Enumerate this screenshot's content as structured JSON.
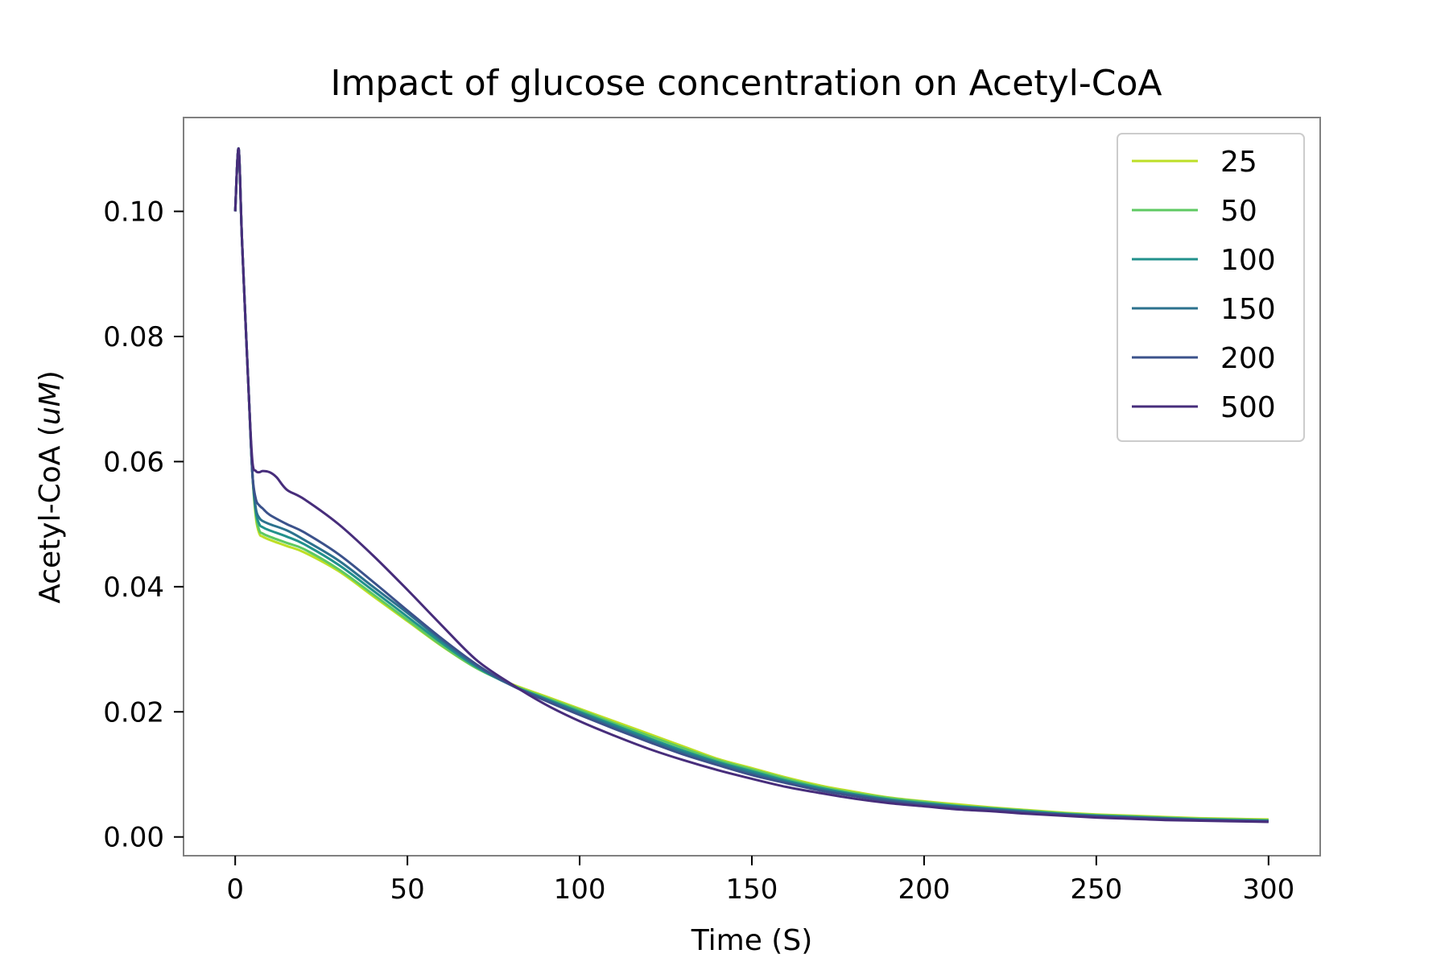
{
  "chart_data": {
    "type": "line",
    "title": "Impact of glucose concentration on Acetyl-CoA",
    "xlabel": "Time (S)",
    "ylabel": "Acetyl-CoA (uM)",
    "ylabel_parts": {
      "prefix": "Acetyl-CoA (",
      "italic": "uM",
      "suffix": ")"
    },
    "xlim": [
      -15,
      315
    ],
    "ylim": [
      -0.003,
      0.115
    ],
    "xticks": [
      0,
      50,
      100,
      150,
      200,
      250,
      300
    ],
    "xtick_labels": [
      "0",
      "50",
      "100",
      "150",
      "200",
      "250",
      "300"
    ],
    "yticks": [
      0.0,
      0.02,
      0.04,
      0.06,
      0.08,
      0.1
    ],
    "ytick_labels": [
      "0.00",
      "0.02",
      "0.04",
      "0.06",
      "0.08",
      "0.10"
    ],
    "grid": false,
    "legend_position": "top-right",
    "series": [
      {
        "name": "25",
        "color": "#bddf26",
        "x": [
          0,
          1,
          2,
          4,
          5,
          6,
          7,
          8,
          10,
          15,
          20,
          30,
          40,
          50,
          60,
          70,
          80,
          90,
          100,
          110,
          120,
          130,
          140,
          150,
          160,
          170,
          180,
          190,
          200,
          210,
          220,
          230,
          240,
          250,
          260,
          270,
          280,
          290,
          300
        ],
        "y": [
          0.1,
          0.11,
          0.095,
          0.07,
          0.058,
          0.051,
          0.0485,
          0.048,
          0.0475,
          0.0465,
          0.0455,
          0.0425,
          0.0385,
          0.0345,
          0.0305,
          0.027,
          0.0245,
          0.0225,
          0.0205,
          0.0185,
          0.0165,
          0.0145,
          0.0125,
          0.011,
          0.0095,
          0.0082,
          0.0072,
          0.0063,
          0.0057,
          0.0052,
          0.0047,
          0.0043,
          0.0039,
          0.0036,
          0.0034,
          0.0032,
          0.003,
          0.0029,
          0.0028
        ]
      },
      {
        "name": "50",
        "color": "#5ec962",
        "x": [
          0,
          1,
          2,
          4,
          5,
          6,
          7,
          8,
          10,
          15,
          20,
          30,
          40,
          50,
          60,
          70,
          80,
          90,
          100,
          110,
          120,
          130,
          140,
          150,
          160,
          170,
          180,
          190,
          200,
          210,
          220,
          230,
          240,
          250,
          260,
          270,
          280,
          290,
          300
        ],
        "y": [
          0.1,
          0.11,
          0.095,
          0.07,
          0.058,
          0.0515,
          0.049,
          0.0485,
          0.048,
          0.047,
          0.046,
          0.0428,
          0.0388,
          0.0347,
          0.0306,
          0.027,
          0.0244,
          0.0223,
          0.0203,
          0.0182,
          0.0162,
          0.0142,
          0.0123,
          0.0108,
          0.0093,
          0.008,
          0.007,
          0.0062,
          0.0056,
          0.005,
          0.0046,
          0.0042,
          0.0038,
          0.0035,
          0.0033,
          0.0031,
          0.0029,
          0.0028,
          0.0027
        ]
      },
      {
        "name": "100",
        "color": "#21918c",
        "x": [
          0,
          1,
          2,
          4,
          5,
          6,
          7,
          8,
          10,
          15,
          20,
          30,
          40,
          50,
          60,
          70,
          80,
          90,
          100,
          110,
          120,
          130,
          140,
          150,
          160,
          170,
          180,
          190,
          200,
          210,
          220,
          230,
          240,
          250,
          260,
          270,
          280,
          290,
          300
        ],
        "y": [
          0.1,
          0.11,
          0.095,
          0.07,
          0.058,
          0.052,
          0.05,
          0.0495,
          0.049,
          0.048,
          0.0468,
          0.0435,
          0.0394,
          0.0352,
          0.031,
          0.0272,
          0.0243,
          0.0221,
          0.02,
          0.0179,
          0.0158,
          0.0138,
          0.012,
          0.0105,
          0.009,
          0.0078,
          0.0068,
          0.006,
          0.0054,
          0.0049,
          0.0045,
          0.0041,
          0.0037,
          0.0034,
          0.0032,
          0.003,
          0.0028,
          0.0027,
          0.0026
        ]
      },
      {
        "name": "150",
        "color": "#2c728e",
        "x": [
          0,
          1,
          2,
          4,
          5,
          6,
          7,
          8,
          10,
          15,
          20,
          30,
          40,
          50,
          60,
          70,
          80,
          90,
          100,
          110,
          120,
          130,
          140,
          150,
          160,
          170,
          180,
          190,
          200,
          210,
          220,
          230,
          240,
          250,
          260,
          270,
          280,
          290,
          300
        ],
        "y": [
          0.1,
          0.11,
          0.095,
          0.07,
          0.058,
          0.0525,
          0.051,
          0.0505,
          0.05,
          0.049,
          0.0475,
          0.0442,
          0.04,
          0.0358,
          0.0314,
          0.0274,
          0.0243,
          0.022,
          0.0198,
          0.0176,
          0.0155,
          0.0135,
          0.0118,
          0.0102,
          0.0088,
          0.0076,
          0.0067,
          0.0059,
          0.0053,
          0.0048,
          0.0044,
          0.004,
          0.0036,
          0.0033,
          0.0031,
          0.0029,
          0.0027,
          0.0026,
          0.0025
        ]
      },
      {
        "name": "200",
        "color": "#3b528b",
        "x": [
          0,
          1,
          2,
          4,
          5,
          6,
          7,
          8,
          10,
          15,
          20,
          30,
          40,
          50,
          60,
          70,
          80,
          90,
          100,
          110,
          120,
          130,
          140,
          150,
          160,
          170,
          180,
          190,
          200,
          210,
          220,
          230,
          240,
          250,
          260,
          270,
          280,
          290,
          300
        ],
        "y": [
          0.1,
          0.11,
          0.095,
          0.07,
          0.058,
          0.054,
          0.053,
          0.0525,
          0.0515,
          0.05,
          0.0487,
          0.0452,
          0.0408,
          0.0362,
          0.0317,
          0.0276,
          0.0243,
          0.0218,
          0.0195,
          0.0173,
          0.0152,
          0.0132,
          0.0115,
          0.0099,
          0.0086,
          0.0074,
          0.0065,
          0.0057,
          0.0051,
          0.0047,
          0.0043,
          0.0039,
          0.0036,
          0.0033,
          0.0031,
          0.0029,
          0.0027,
          0.0026,
          0.0025
        ]
      },
      {
        "name": "500",
        "color": "#472d7b",
        "x": [
          0,
          1,
          2,
          4,
          5,
          6,
          7,
          8,
          10,
          12,
          15,
          20,
          30,
          40,
          50,
          60,
          70,
          80,
          90,
          100,
          110,
          120,
          130,
          140,
          150,
          160,
          170,
          180,
          190,
          200,
          210,
          220,
          230,
          240,
          250,
          260,
          270,
          280,
          290,
          300
        ],
        "y": [
          0.1,
          0.11,
          0.095,
          0.07,
          0.06,
          0.0585,
          0.0583,
          0.0585,
          0.0583,
          0.0575,
          0.0555,
          0.054,
          0.05,
          0.045,
          0.0395,
          0.0338,
          0.0283,
          0.0245,
          0.0212,
          0.0185,
          0.0162,
          0.0141,
          0.0123,
          0.0107,
          0.0093,
          0.008,
          0.007,
          0.0061,
          0.0054,
          0.0049,
          0.0044,
          0.0041,
          0.0037,
          0.0034,
          0.0031,
          0.0029,
          0.0027,
          0.0026,
          0.0025,
          0.0024
        ]
      }
    ]
  }
}
